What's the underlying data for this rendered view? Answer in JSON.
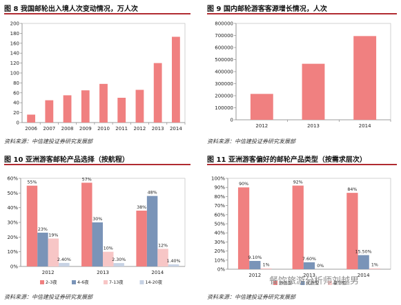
{
  "panels": [
    {
      "title": "图 8 我国邮轮出入境人次变动情况，万人次",
      "source": "资料来源：中信建投证券研究发展部",
      "chart_data": {
        "type": "bar",
        "categories": [
          "2006",
          "2007",
          "2008",
          "2009",
          "2010",
          "2011",
          "2012",
          "2013",
          "2014"
        ],
        "values": [
          16,
          45,
          55,
          65,
          78,
          50,
          66,
          120,
          173
        ],
        "ylim": [
          0,
          200
        ],
        "yticks": [
          0,
          20,
          40,
          60,
          80,
          100,
          120,
          140,
          160,
          180,
          200
        ],
        "color": "#f08080",
        "grid": false,
        "legend": ""
      }
    },
    {
      "title": "图 9 国内邮轮游客客源增长情况，人次",
      "source": "资料来源：中信建投证券研究发展部",
      "chart_data": {
        "type": "bar",
        "categories": [
          "2012",
          "2013",
          "2014"
        ],
        "values": [
          215000,
          465000,
          695000
        ],
        "ylim": [
          0,
          800000
        ],
        "yticks": [
          0,
          100000,
          200000,
          300000,
          400000,
          500000,
          600000,
          700000,
          800000
        ],
        "color": "#f08080",
        "grid": false,
        "legend": ""
      }
    },
    {
      "title": "图 10 亚洲游客邮轮产品选择（按航程）",
      "source": "资料来源：中信建投证券研究发展部",
      "chart_data": {
        "type": "bar",
        "categories": [
          "2012",
          "2013",
          "2014"
        ],
        "series": [
          {
            "name": "2-3夜",
            "values": [
              55,
              57,
              38
            ],
            "labels": [
              "55%",
              "57%",
              "38%"
            ],
            "color": "#f08080"
          },
          {
            "name": "4-6夜",
            "values": [
              23,
              30,
              48
            ],
            "labels": [
              "23%",
              "30%",
              "48%"
            ],
            "color": "#7a94b8"
          },
          {
            "name": "7-13夜",
            "values": [
              19,
              10,
              12
            ],
            "labels": [
              "19%",
              "10%",
              "12%"
            ],
            "color": "#f7c6c6"
          },
          {
            "name": "14-20夜",
            "values": [
              2.4,
              2.3,
              1.4
            ],
            "labels": [
              "2.40%",
              "2.30%",
              "1.40%"
            ],
            "color": "#c7d2e4"
          }
        ],
        "ylim": [
          0,
          60
        ],
        "yticks": [
          "0%",
          "10%",
          "20%",
          "30%",
          "40%",
          "50%",
          "60%"
        ],
        "legend": "bottom"
      }
    },
    {
      "title": "图 11 亚洲游客偏好的邮轮产品类型（按需求层次）",
      "source": "资料来源：中信建投证券研究发展部",
      "chart_data": {
        "type": "bar",
        "categories": [
          "2012",
          "2013",
          "2014"
        ],
        "series": [
          {
            "name": "舒适型",
            "values": [
              90,
              92,
              84
            ],
            "labels": [
              "90%",
              "92%",
              "84%"
            ],
            "color": "#f08080"
          },
          {
            "name": "优质型",
            "values": [
              9.1,
              7.6,
              15.5
            ],
            "labels": [
              "9.10%",
              "7.60%",
              "15.50%"
            ],
            "color": "#7a94b8"
          },
          {
            "name": "豪华型",
            "values": [
              1,
              0,
              1
            ],
            "labels": [
              "1%",
              "0%",
              "1%"
            ],
            "color": "#f7c6c6"
          }
        ],
        "ylim": [
          0,
          100
        ],
        "yticks": [
          "0%",
          "10%",
          "20%",
          "30%",
          "40%",
          "50%",
          "60%",
          "70%",
          "80%",
          "90%",
          "100%"
        ],
        "legend": "bottom"
      }
    }
  ],
  "watermark": "餐饮旅游分析师刘越男"
}
